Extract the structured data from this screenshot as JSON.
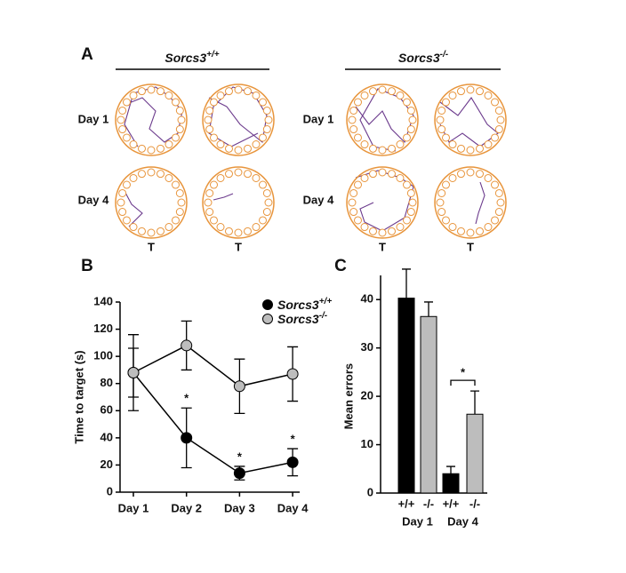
{
  "panel_a": {
    "label": "A",
    "groups": [
      {
        "name": "Sorcs3",
        "sup": "+/+"
      },
      {
        "name": "Sorcs3",
        "sup": "-/-"
      }
    ],
    "rows": [
      "Day 1",
      "Day 4"
    ],
    "target_label": "T"
  },
  "chart_data": [
    {
      "type": "line",
      "label": "B",
      "ylabel": "Time to target (s)",
      "categories": [
        "Day 1",
        "Day 2",
        "Day 3",
        "Day 4"
      ],
      "series": [
        {
          "name": "Sorcs3",
          "name_sup": "+/+",
          "color": "#000000",
          "values": [
            88,
            40,
            14,
            22
          ],
          "errors": [
            28,
            22,
            5,
            10
          ]
        },
        {
          "name": "Sorcs3",
          "name_sup": "-/-",
          "color": "#bdbdbd",
          "values": [
            88,
            108,
            78,
            87
          ],
          "errors": [
            18,
            18,
            20,
            20
          ]
        }
      ],
      "annotations": [
        {
          "text": "*",
          "category": "Day 2"
        },
        {
          "text": "*",
          "category": "Day 3"
        },
        {
          "text": "*",
          "category": "Day 4"
        }
      ],
      "ylim": [
        0,
        140
      ],
      "yticks": [
        0,
        20,
        40,
        60,
        80,
        100,
        120,
        140
      ]
    },
    {
      "type": "bar",
      "label": "C",
      "ylabel": "Mean errors",
      "categories": [
        "+/+",
        "-/-",
        "+/+",
        "-/-"
      ],
      "groups": [
        "Day 1",
        "Day 4"
      ],
      "values": [
        40.3,
        36.5,
        4,
        16.3
      ],
      "errors": [
        6,
        3,
        1.5,
        4.8
      ],
      "colors": [
        "#000000",
        "#bdbdbd",
        "#000000",
        "#bdbdbd"
      ],
      "annotation": "*",
      "ylim": [
        0,
        45
      ],
      "yticks": [
        0,
        10,
        20,
        30,
        40
      ]
    }
  ]
}
